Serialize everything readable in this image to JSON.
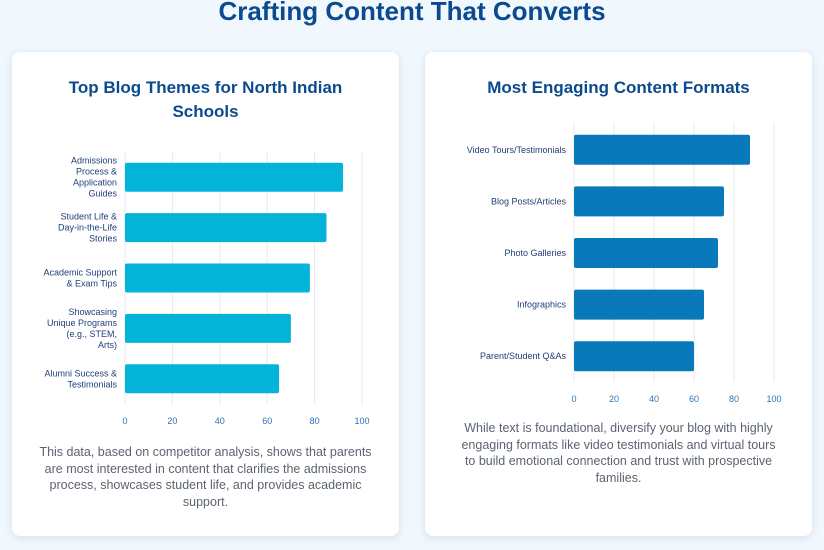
{
  "page": {
    "title": "Crafting Content That Converts"
  },
  "colors": {
    "bar_themes": "#03b4d8",
    "bar_formats": "#0a79bb",
    "grid": "#e6e9ee"
  },
  "chart_data": [
    {
      "type": "bar",
      "orientation": "horizontal",
      "title": "Top Blog Themes for North Indian Schools",
      "categories": [
        "Admissions Process & Application Guides",
        "Student Life & Day-in-the-Life Stories",
        "Academic Support & Exam Tips",
        "Showcasing Unique Programs (e.g., STEM, Arts)",
        "Alumni Success & Testimonials"
      ],
      "category_lines": [
        [
          "Admissions",
          "Process &",
          "Application",
          "Guides"
        ],
        [
          "Student Life &",
          "Day-in-the-Life",
          "Stories"
        ],
        [
          "Academic Support",
          "& Exam Tips"
        ],
        [
          "Showcasing",
          "Unique Programs",
          "(e.g., STEM,",
          "Arts)"
        ],
        [
          "Alumni Success &",
          "Testimonials"
        ]
      ],
      "values": [
        92,
        85,
        78,
        70,
        65
      ],
      "xlim": [
        0,
        100
      ],
      "ticks": [
        0,
        20,
        40,
        60,
        80,
        100
      ],
      "tick_labels": [
        "0",
        "20",
        "40",
        "60",
        "80",
        "100"
      ],
      "xlabel": "",
      "ylabel": "",
      "grid": true,
      "note": "This data, based on competitor analysis, shows that parents are most interested in content that clarifies the admissions process, showcases student life, and provides academic support."
    },
    {
      "type": "bar",
      "orientation": "horizontal",
      "title": "Most Engaging Content Formats",
      "categories": [
        "Video Tours/Testimonials",
        "Blog Posts/Articles",
        "Photo Galleries",
        "Infographics",
        "Parent/Student Q&As"
      ],
      "category_lines": [
        [
          "Video Tours/Testimonials"
        ],
        [
          "Blog Posts/Articles"
        ],
        [
          "Photo Galleries"
        ],
        [
          "Infographics"
        ],
        [
          "Parent/Student Q&As"
        ]
      ],
      "values": [
        88,
        75,
        72,
        65,
        60
      ],
      "xlim": [
        0,
        100
      ],
      "ticks": [
        0,
        20,
        40,
        60,
        80,
        100
      ],
      "tick_labels": [
        "0",
        "20",
        "40",
        "60",
        "80",
        "100"
      ],
      "xlabel": "",
      "ylabel": "",
      "grid": true,
      "note": "While text is foundational, diversify your blog with highly engaging formats like video testimonials and virtual tours to build emotional connection and trust with prospective families."
    }
  ]
}
